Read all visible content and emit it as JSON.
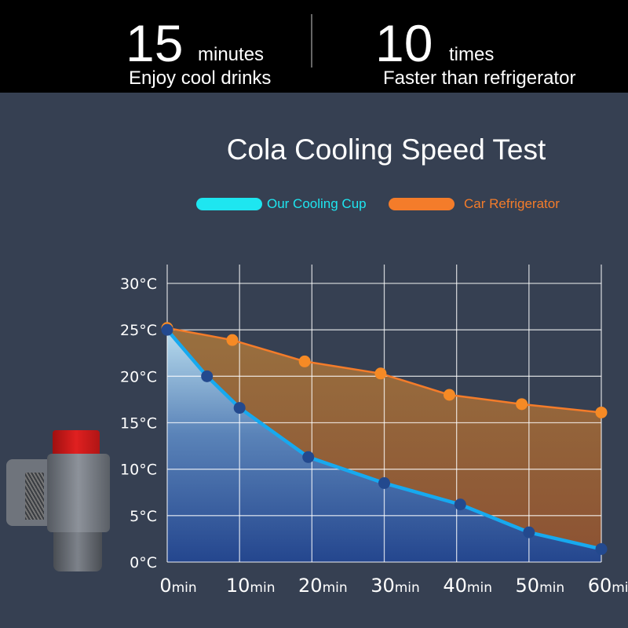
{
  "header": {
    "stat1": {
      "value": "15",
      "unit": "minutes",
      "caption": "Enjoy cool drinks"
    },
    "stat2": {
      "value": "10",
      "unit": "times",
      "caption": "Faster than refrigerator"
    }
  },
  "colors": {
    "our_cup": "#1ee6f0",
    "car_fridge": "#f47c2a",
    "background": "#364052",
    "header": "#000000"
  },
  "chart_data": {
    "type": "area",
    "title": "Cola Cooling Speed Test",
    "legend_position": "top",
    "grid": true,
    "ylim": [
      0,
      30
    ],
    "xlim": [
      0,
      60
    ],
    "y_ticks": [
      "0°C",
      "5°C",
      "10°C",
      "15°C",
      "20°C",
      "25°C",
      "30°C"
    ],
    "x_ticks": [
      {
        "num": "0",
        "unit": "min"
      },
      {
        "num": "10",
        "unit": "min"
      },
      {
        "num": "20",
        "unit": "min"
      },
      {
        "num": "30",
        "unit": "min"
      },
      {
        "num": "40",
        "unit": "min"
      },
      {
        "num": "50",
        "unit": "min"
      },
      {
        "num": "60",
        "unit": "min"
      }
    ],
    "series": [
      {
        "name": "Our Cooling Cup",
        "color": "#1ee6f0",
        "points": [
          [
            0,
            25
          ],
          [
            5.5,
            20
          ],
          [
            10,
            16.6
          ],
          [
            19.5,
            11.3
          ],
          [
            30,
            8.5
          ],
          [
            40.5,
            6.2
          ],
          [
            50,
            3.2
          ],
          [
            60,
            1.4
          ]
        ]
      },
      {
        "name": "Car Refrigerator",
        "color": "#f47c2a",
        "points": [
          [
            0,
            25.2
          ],
          [
            9,
            23.9
          ],
          [
            19,
            21.6
          ],
          [
            29.5,
            20.3
          ],
          [
            39,
            18
          ],
          [
            49,
            17
          ],
          [
            60,
            16.1
          ]
        ]
      }
    ]
  }
}
